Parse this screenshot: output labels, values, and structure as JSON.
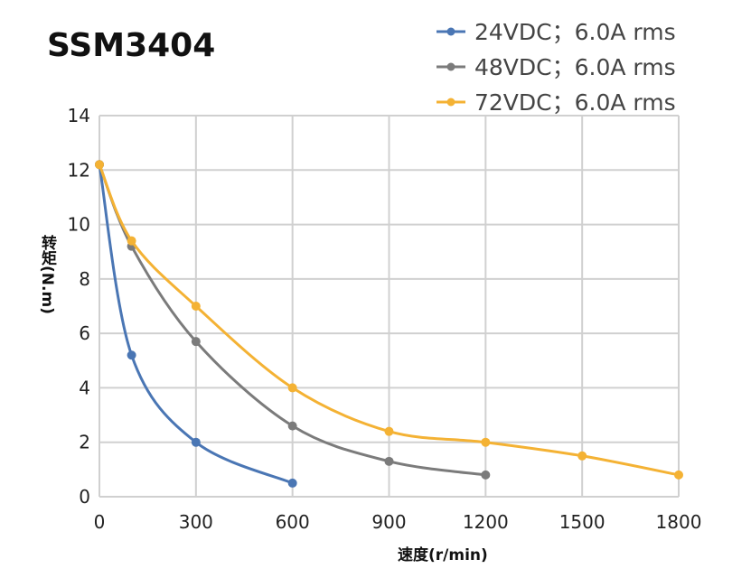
{
  "chart_data": {
    "type": "line",
    "title": "SSM3404",
    "xlabel": "速度(r/min)",
    "ylabel": "转矩(N.m)",
    "xlim": [
      0,
      1800
    ],
    "ylim": [
      0,
      14
    ],
    "xticks": [
      0,
      300,
      600,
      900,
      1200,
      1500,
      1800
    ],
    "yticks": [
      0,
      2,
      4,
      6,
      8,
      10,
      12,
      14
    ],
    "grid": true,
    "legend": "top-right",
    "series": [
      {
        "name": "24VDC；6.0A rms",
        "color": "#4a76b4",
        "x": [
          0,
          100,
          300,
          600
        ],
        "y": [
          12.2,
          5.2,
          2.0,
          0.5
        ]
      },
      {
        "name": "48VDC；6.0A rms",
        "color": "#7b7b7b",
        "x": [
          0,
          100,
          300,
          600,
          900,
          1200
        ],
        "y": [
          12.2,
          9.2,
          5.7,
          2.6,
          1.3,
          0.8
        ]
      },
      {
        "name": "72VDC；6.0A rms",
        "color": "#f4b234",
        "x": [
          0,
          100,
          300,
          600,
          900,
          1200,
          1500,
          1800
        ],
        "y": [
          12.2,
          9.4,
          7.0,
          4.0,
          2.4,
          2.0,
          1.5,
          0.8
        ]
      }
    ]
  }
}
